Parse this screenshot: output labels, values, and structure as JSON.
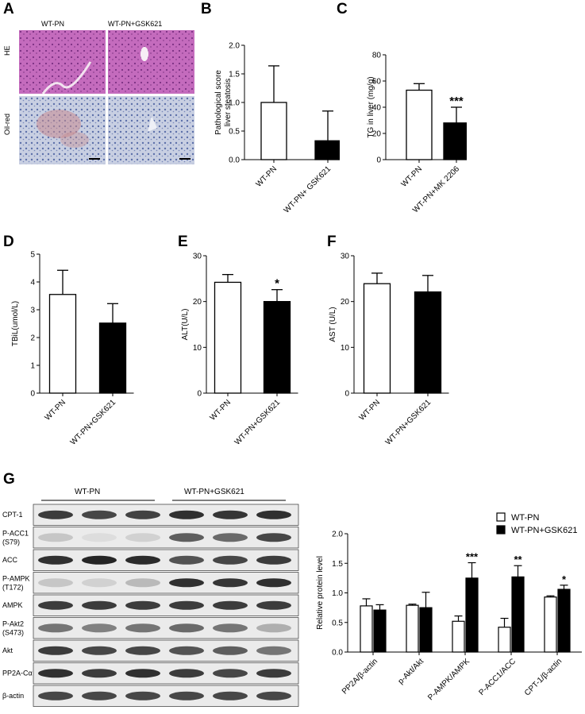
{
  "panels": {
    "A": "A",
    "B": "B",
    "C": "C",
    "D": "D",
    "E": "E",
    "F": "F",
    "G": "G"
  },
  "panel_a": {
    "col_labels": [
      "WT-PN",
      "WT-PN+GSK621"
    ],
    "row_labels": [
      "HE",
      "Oil-red"
    ],
    "colors": {
      "he": "#c06fb6",
      "he_dark": "#8a3a8c",
      "oil": "#c9d0e4",
      "oil_dark": "#5a6fa8"
    }
  },
  "chart_data": [
    {
      "id": "B",
      "type": "bar",
      "categories": [
        "WT-PN",
        "WT-PN+ GSK621"
      ],
      "values": [
        1.0,
        0.33
      ],
      "errors": [
        0.64,
        0.52
      ],
      "ylabel": "Pathological score\nliver steatosis",
      "ylim": [
        0,
        2.0
      ],
      "yticks": [
        "0.0",
        "0.5",
        "1.0",
        "1.5",
        "2.0"
      ],
      "sig": [
        "",
        ""
      ],
      "grid": false
    },
    {
      "id": "C",
      "type": "bar",
      "categories": [
        "WT-PN",
        "WT-PN+MK 2206"
      ],
      "values": [
        53,
        28
      ],
      "errors": [
        5,
        12
      ],
      "ylabel": "TG in liver (mg/g)",
      "ylim": [
        0,
        80
      ],
      "yticks": [
        "0",
        "20",
        "40",
        "60",
        "80"
      ],
      "sig": [
        "",
        "***"
      ],
      "grid": false
    },
    {
      "id": "D",
      "type": "bar",
      "categories": [
        "WT-PN",
        "WT-PN+GSK621"
      ],
      "values": [
        3.55,
        2.52
      ],
      "errors": [
        0.87,
        0.7
      ],
      "ylabel": "TBiL(umol/L)",
      "ylim": [
        0,
        5
      ],
      "yticks": [
        "0",
        "1",
        "2",
        "3",
        "4",
        "5"
      ],
      "sig": [
        "",
        ""
      ],
      "grid": false
    },
    {
      "id": "E",
      "type": "bar",
      "categories": [
        "WT-PN",
        "WT-PN+GSK621"
      ],
      "values": [
        24.2,
        20.0
      ],
      "errors": [
        1.7,
        2.6
      ],
      "ylabel": "ALT(U/L)",
      "ylim": [
        0,
        30
      ],
      "yticks": [
        "0",
        "10",
        "20",
        "30"
      ],
      "sig": [
        "",
        "*"
      ],
      "grid": false
    },
    {
      "id": "F",
      "type": "bar",
      "categories": [
        "WT-PN",
        "WT-PN+GSK621"
      ],
      "values": [
        23.9,
        22.1
      ],
      "errors": [
        2.3,
        3.6
      ],
      "ylabel": "AST (U/L)",
      "ylim": [
        0,
        30
      ],
      "yticks": [
        "0",
        "10",
        "20",
        "30"
      ],
      "sig": [
        "",
        ""
      ],
      "grid": false
    },
    {
      "id": "G",
      "type": "bar",
      "categories": [
        "PP2A/β-actin",
        "p-Akt/Akt",
        "P-AMPK/AMPK",
        "P-ACC1/ACC",
        "CPT-1/β-actin"
      ],
      "series": [
        {
          "name": "WT-PN",
          "values": [
            0.78,
            0.79,
            0.52,
            0.42,
            0.93
          ],
          "errors": [
            0.12,
            0.02,
            0.09,
            0.15,
            0.02
          ],
          "color": "#ffffff"
        },
        {
          "name": "WT-PN+GSK621",
          "values": [
            0.71,
            0.75,
            1.25,
            1.27,
            1.06
          ],
          "errors": [
            0.09,
            0.26,
            0.26,
            0.19,
            0.07
          ],
          "color": "#000000"
        }
      ],
      "sig": [
        "",
        "",
        "***",
        "**",
        "*"
      ],
      "ylabel": "Relative protein level",
      "ylim": [
        0,
        2.0
      ],
      "yticks": [
        "0.0",
        "0.5",
        "1.0",
        "1.5",
        "2.0"
      ],
      "legend": "top-right",
      "grid": false
    }
  ],
  "panel_g_blot": {
    "group_labels": [
      "WT-PN",
      "WT-PN+GSK621"
    ],
    "row_labels": [
      "CPT-1",
      "P-ACC1\n(S79)",
      "ACC",
      "P-AMPK\n(T172)",
      "AMPK",
      "P-Akt2\n(S473)",
      "Akt",
      "PP2A-Cα",
      "β-actin"
    ],
    "band_intensity": [
      [
        0.85,
        0.8,
        0.82,
        0.9,
        0.88,
        0.9
      ],
      [
        0.25,
        0.15,
        0.2,
        0.7,
        0.65,
        0.8
      ],
      [
        0.9,
        0.95,
        0.92,
        0.75,
        0.8,
        0.85
      ],
      [
        0.25,
        0.2,
        0.3,
        0.9,
        0.88,
        0.9
      ],
      [
        0.85,
        0.85,
        0.85,
        0.85,
        0.85,
        0.85
      ],
      [
        0.6,
        0.55,
        0.6,
        0.65,
        0.6,
        0.35
      ],
      [
        0.85,
        0.8,
        0.8,
        0.75,
        0.7,
        0.6
      ],
      [
        0.9,
        0.85,
        0.9,
        0.85,
        0.8,
        0.85
      ],
      [
        0.8,
        0.8,
        0.8,
        0.8,
        0.8,
        0.8
      ]
    ]
  }
}
